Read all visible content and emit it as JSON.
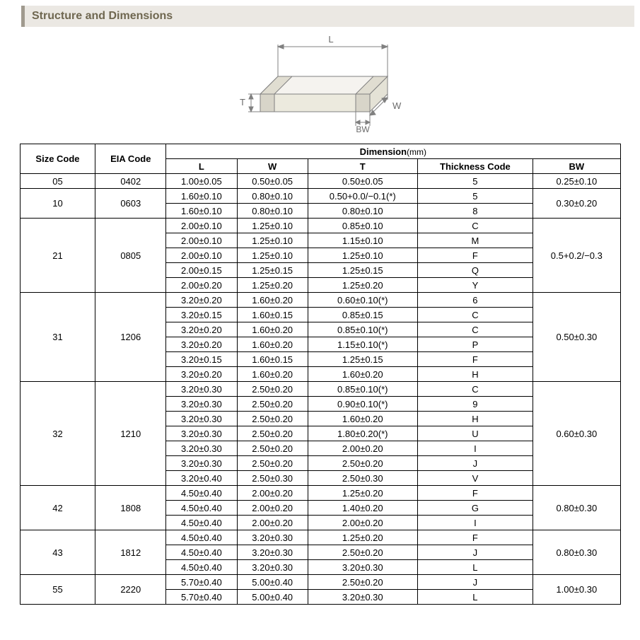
{
  "header": {
    "title": "Structure and Dimensions"
  },
  "diagram": {
    "labels": {
      "L": "L",
      "W": "W",
      "T": "T",
      "BW": "BW"
    },
    "stroke": "#808080",
    "fill": "#f5f3ef",
    "text": "#6b6b6b"
  },
  "table": {
    "headers": {
      "size_code": "Size Code",
      "eia_code": "EIA Code",
      "dimension": "Dimension",
      "dimension_unit": "(mm)",
      "L": "L",
      "W": "W",
      "T": "T",
      "thickness_code": "Thickness Code",
      "BW": "BW"
    },
    "groups": [
      {
        "size": "05",
        "eia": "0402",
        "bw": "0.25±0.10",
        "rows": [
          {
            "L": "1.00±0.05",
            "W": "0.50±0.05",
            "T": "0.50±0.05",
            "tc": "5"
          }
        ]
      },
      {
        "size": "10",
        "eia": "0603",
        "bw": "0.30±0.20",
        "rows": [
          {
            "L": "1.60±0.10",
            "W": "0.80±0.10",
            "T": "0.50+0.0/−0.1(*)",
            "tc": "5"
          },
          {
            "L": "1.60±0.10",
            "W": "0.80±0.10",
            "T": "0.80±0.10",
            "tc": "8"
          }
        ]
      },
      {
        "size": "21",
        "eia": "0805",
        "bw": "0.5+0.2/−0.3",
        "rows": [
          {
            "L": "2.00±0.10",
            "W": "1.25±0.10",
            "T": "0.85±0.10",
            "tc": "C"
          },
          {
            "L": "2.00±0.10",
            "W": "1.25±0.10",
            "T": "1.15±0.10",
            "tc": "M"
          },
          {
            "L": "2.00±0.10",
            "W": "1.25±0.10",
            "T": "1.25±0.10",
            "tc": "F"
          },
          {
            "L": "2.00±0.15",
            "W": "1.25±0.15",
            "T": "1.25±0.15",
            "tc": "Q"
          },
          {
            "L": "2.00±0.20",
            "W": "1.25±0.20",
            "T": "1.25±0.20",
            "tc": "Y"
          }
        ]
      },
      {
        "size": "31",
        "eia": "1206",
        "bw": "0.50±0.30",
        "rows": [
          {
            "L": "3.20±0.20",
            "W": "1.60±0.20",
            "T": "0.60±0.10(*)",
            "tc": "6"
          },
          {
            "L": "3.20±0.15",
            "W": "1.60±0.15",
            "T": "0.85±0.15",
            "tc": "C"
          },
          {
            "L": "3.20±0.20",
            "W": "1.60±0.20",
            "T": "0.85±0.10(*)",
            "tc": "C"
          },
          {
            "L": "3.20±0.20",
            "W": "1.60±0.20",
            "T": "1.15±0.10(*)",
            "tc": "P"
          },
          {
            "L": "3.20±0.15",
            "W": "1.60±0.15",
            "T": "1.25±0.15",
            "tc": "F"
          },
          {
            "L": "3.20±0.20",
            "W": "1.60±0.20",
            "T": "1.60±0.20",
            "tc": "H"
          }
        ]
      },
      {
        "size": "32",
        "eia": "1210",
        "bw": "0.60±0.30",
        "rows": [
          {
            "L": "3.20±0.30",
            "W": "2.50±0.20",
            "T": "0.85±0.10(*)",
            "tc": "C"
          },
          {
            "L": "3.20±0.30",
            "W": "2.50±0.20",
            "T": "0.90±0.10(*)",
            "tc": "9"
          },
          {
            "L": "3.20±0.30",
            "W": "2.50±0.20",
            "T": "1.60±0.20",
            "tc": "H"
          },
          {
            "L": "3.20±0.30",
            "W": "2.50±0.20",
            "T": "1.80±0.20(*)",
            "tc": "U"
          },
          {
            "L": "3.20±0.30",
            "W": "2.50±0.20",
            "T": "2.00±0.20",
            "tc": "I"
          },
          {
            "L": "3.20±0.30",
            "W": "2.50±0.20",
            "T": "2.50±0.20",
            "tc": "J"
          },
          {
            "L": "3.20±0.40",
            "W": "2.50±0.30",
            "T": "2.50±0.30",
            "tc": "V"
          }
        ]
      },
      {
        "size": "42",
        "eia": "1808",
        "bw": "0.80±0.30",
        "rows": [
          {
            "L": "4.50±0.40",
            "W": "2.00±0.20",
            "T": "1.25±0.20",
            "tc": "F"
          },
          {
            "L": "4.50±0.40",
            "W": "2.00±0.20",
            "T": "1.40±0.20",
            "tc": "G"
          },
          {
            "L": "4.50±0.40",
            "W": "2.00±0.20",
            "T": "2.00±0.20",
            "tc": "I"
          }
        ]
      },
      {
        "size": "43",
        "eia": "1812",
        "bw": "0.80±0.30",
        "rows": [
          {
            "L": "4.50±0.40",
            "W": "3.20±0.30",
            "T": "1.25±0.20",
            "tc": "F"
          },
          {
            "L": "4.50±0.40",
            "W": "3.20±0.30",
            "T": "2.50±0.20",
            "tc": "J"
          },
          {
            "L": "4.50±0.40",
            "W": "3.20±0.30",
            "T": "3.20±0.30",
            "tc": "L"
          }
        ]
      },
      {
        "size": "55",
        "eia": "2220",
        "bw": "1.00±0.30",
        "rows": [
          {
            "L": "5.70±0.40",
            "W": "5.00±0.40",
            "T": "2.50±0.20",
            "tc": "J"
          },
          {
            "L": "5.70±0.40",
            "W": "5.00±0.40",
            "T": "3.20±0.30",
            "tc": "L"
          }
        ]
      }
    ]
  }
}
